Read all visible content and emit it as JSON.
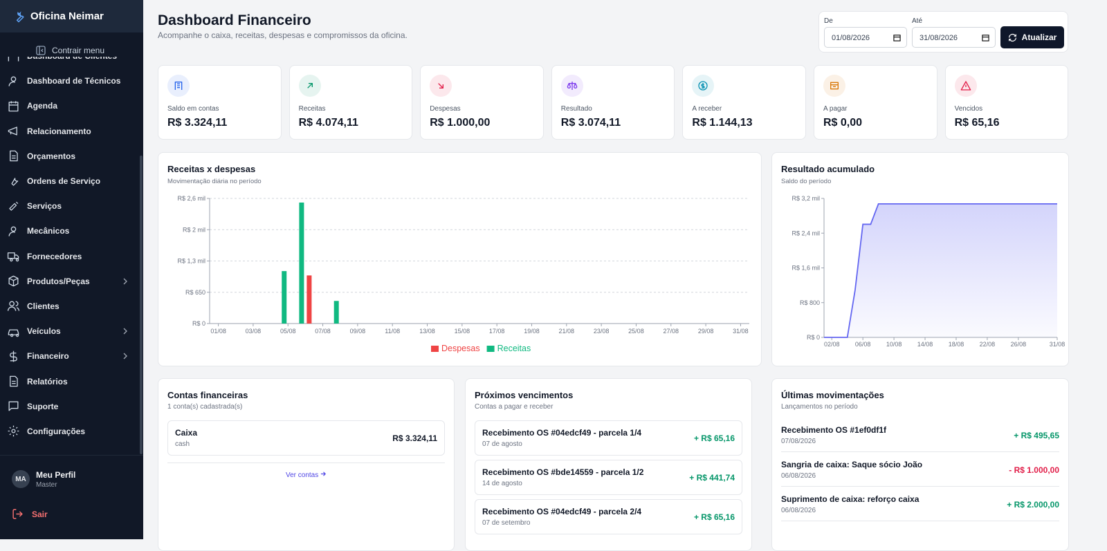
{
  "sidebar": {
    "brand": "Oficina Neimar",
    "collapse": "Contrair menu",
    "nav": [
      {
        "label": "Dashboard de Clientes"
      },
      {
        "label": "Dashboard de Técnicos"
      },
      {
        "label": "Agenda"
      },
      {
        "label": "Relacionamento"
      },
      {
        "label": "Orçamentos"
      },
      {
        "label": "Ordens de Serviço"
      },
      {
        "label": "Serviços"
      },
      {
        "label": "Mecânicos"
      },
      {
        "label": "Fornecedores"
      },
      {
        "label": "Produtos/Peças",
        "submenu": true
      },
      {
        "label": "Clientes"
      },
      {
        "label": "Veículos",
        "submenu": true
      },
      {
        "label": "Financeiro",
        "submenu": true
      },
      {
        "label": "Relatórios"
      },
      {
        "label": "Suporte"
      },
      {
        "label": "Configurações"
      }
    ],
    "profile": {
      "initials": "MA",
      "name": "Meu Perfil",
      "role": "Master"
    },
    "logout": "Sair"
  },
  "header": {
    "title": "Dashboard Financeiro",
    "subtitle": "Acompanhe o caixa, receitas, despesas e compromissos da oficina.",
    "from_label": "De",
    "from_value": "01/08/2026",
    "to_label": "Até",
    "to_value": "31/08/2026",
    "button": "Atualizar"
  },
  "cards": [
    {
      "label": "Saldo em contas",
      "value": "R$ 3.324,11",
      "color": "#2563eb"
    },
    {
      "label": "Receitas",
      "value": "R$ 4.074,11",
      "color": "#059669"
    },
    {
      "label": "Despesas",
      "value": "R$ 1.000,00",
      "color": "#e11d48"
    },
    {
      "label": "Resultado",
      "value": "R$ 3.074,11",
      "color": "#7c3aed"
    },
    {
      "label": "A receber",
      "value": "R$ 1.144,13",
      "color": "#0891b2"
    },
    {
      "label": "A pagar",
      "value": "R$ 0,00",
      "color": "#d97706"
    },
    {
      "label": "Vencidos",
      "value": "R$ 65,16",
      "color": "#e11d48"
    }
  ],
  "chart_data": [
    {
      "type": "bar",
      "title": "Receitas x despesas",
      "subtitle": "Movimentação diária no período",
      "categories": [
        "01/08",
        null,
        "03/08",
        null,
        "05/08",
        null,
        "07/08",
        null,
        "09/08",
        null,
        "11/08",
        null,
        "13/08",
        null,
        "15/08",
        null,
        "17/08",
        null,
        "19/08",
        null,
        "21/08",
        null,
        "23/08",
        null,
        "25/08",
        null,
        "27/08",
        null,
        "29/08",
        null,
        "31/08"
      ],
      "series": [
        {
          "name": "Despesas",
          "color": "#ef4444",
          "values": [
            0,
            0,
            0,
            0,
            0,
            1000,
            0,
            0,
            0,
            0,
            0,
            0,
            0,
            0,
            0,
            0,
            0,
            0,
            0,
            0,
            0,
            0,
            0,
            0,
            0,
            0,
            0,
            0,
            0,
            0,
            0
          ]
        },
        {
          "name": "Receitas",
          "color": "#10b981",
          "values": [
            0,
            0,
            0,
            0,
            1090,
            2514,
            0,
            470.11,
            0,
            0,
            0,
            0,
            0,
            0,
            0,
            0,
            0,
            0,
            0,
            0,
            0,
            0,
            0,
            0,
            0,
            0,
            0,
            0,
            0,
            0,
            0
          ]
        }
      ],
      "ylim": [
        0,
        2600
      ],
      "yticks": [
        {
          "value": 0,
          "label": "R$ 0"
        },
        {
          "value": 650,
          "label": "R$ 650"
        },
        {
          "value": 1300,
          "label": "R$ 1,3 mil"
        },
        {
          "value": 1950,
          "label": "R$ 2 mil"
        },
        {
          "value": 2600,
          "label": "R$ 2,6 mil"
        }
      ],
      "grid": true
    },
    {
      "type": "area",
      "title": "Resultado acumulado",
      "subtitle": "Saldo do período",
      "categories": [
        null,
        "02/08",
        null,
        null,
        null,
        "06/08",
        null,
        null,
        null,
        "10/08",
        null,
        null,
        null,
        "14/08",
        null,
        null,
        null,
        "18/08",
        null,
        null,
        null,
        "22/08",
        null,
        null,
        null,
        "26/08",
        null,
        null,
        null,
        null,
        "31/08"
      ],
      "values": [
        0,
        0,
        0,
        0,
        1090,
        2604,
        2604,
        3074.11,
        3074.11,
        3074.11,
        3074.11,
        3074.11,
        3074.11,
        3074.11,
        3074.11,
        3074.11,
        3074.11,
        3074.11,
        3074.11,
        3074.11,
        3074.11,
        3074.11,
        3074.11,
        3074.11,
        3074.11,
        3074.11,
        3074.11,
        3074.11,
        3074.11,
        3074.11,
        3074.11
      ],
      "color": "#6366f1",
      "ylim": [
        0,
        3200
      ],
      "yticks": [
        {
          "value": 0,
          "label": "R$ 0"
        },
        {
          "value": 800,
          "label": "R$ 800"
        },
        {
          "value": 1600,
          "label": "R$ 1,6 mil"
        },
        {
          "value": 2400,
          "label": "R$ 2,4 mil"
        },
        {
          "value": 3200,
          "label": "R$ 3,2 mil"
        }
      ],
      "grid": false
    }
  ],
  "accounts": {
    "title": "Contas financeiras",
    "subtitle": "1 conta(s) cadastrada(s)",
    "items": [
      {
        "name": "Caixa",
        "type": "cash",
        "balance": "R$ 3.324,11"
      }
    ],
    "link": "Ver contas"
  },
  "upcoming": {
    "title": "Próximos vencimentos",
    "subtitle": "Contas a pagar e receber",
    "items": [
      {
        "title": "Recebimento OS #04edcf49 - parcela 1/4",
        "date": "07 de agosto",
        "amount": "+ R$ 65,16"
      },
      {
        "title": "Recebimento OS #bde14559 - parcela 1/2",
        "date": "14 de agosto",
        "amount": "+ R$ 441,74"
      },
      {
        "title": "Recebimento OS #04edcf49 - parcela 2/4",
        "date": "07 de setembro",
        "amount": "+ R$ 65,16"
      }
    ]
  },
  "recent": {
    "title": "Últimas movimentações",
    "subtitle": "Lançamentos no período",
    "items": [
      {
        "title": "Recebimento OS #1ef0df1f",
        "date": "07/08/2026",
        "amount": "+ R$ 495,65"
      },
      {
        "title": "Sangria de caixa: Saque sócio João",
        "date": "06/08/2026",
        "amount": "- R$ 1.000,00"
      },
      {
        "title": "Suprimento de caixa: reforço caixa",
        "date": "06/08/2026",
        "amount": "+ R$ 2.000,00"
      }
    ]
  }
}
